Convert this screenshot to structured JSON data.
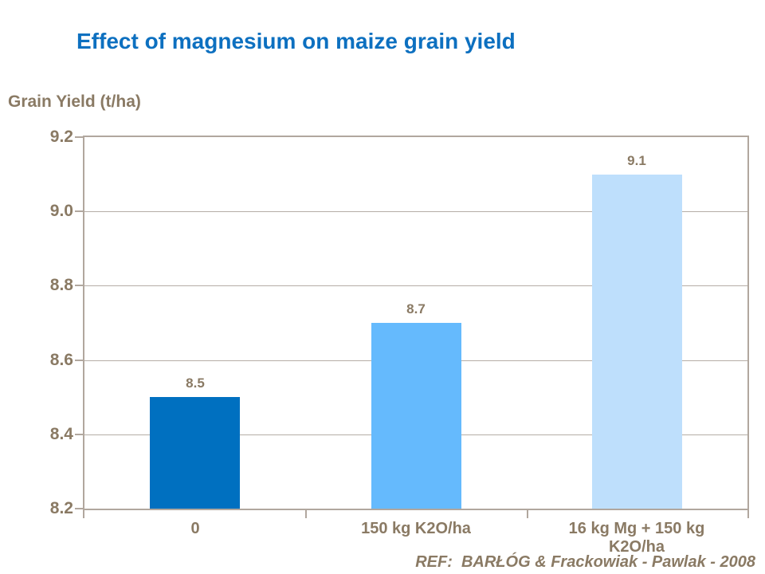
{
  "page": {
    "reference": "REF:  BARŁÓG & Frackowiak - Pawlak - 2008"
  },
  "chart_data": {
    "type": "bar",
    "title": "Effect of magnesium on maize grain yield",
    "ylabel": "Grain Yield (t/ha)",
    "xlabel": "",
    "categories": [
      "0",
      "150 kg K2O/ha",
      "16 kg Mg + 150 kg K2O/ha"
    ],
    "values": [
      8.5,
      8.7,
      9.1
    ],
    "data_labels": [
      "8.5",
      "8.7",
      "9.1"
    ],
    "bar_colors": [
      "#0070c0",
      "#65bafd",
      "#bedffc"
    ],
    "ylim": [
      8.2,
      9.2
    ],
    "ytick_step": 0.2,
    "yticks": [
      "9.2",
      "9.0",
      "8.8",
      "8.6",
      "8.4",
      "8.2"
    ],
    "grid": true,
    "legend": false
  },
  "colors": {
    "title": "#0d70c0",
    "text": "#8a7a64",
    "axis": "#b1a79e",
    "gridline": "#b5ada6",
    "background": "#ffffff"
  }
}
